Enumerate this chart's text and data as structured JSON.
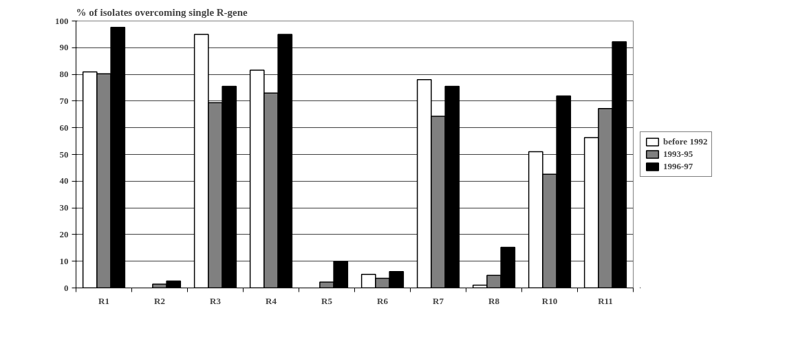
{
  "chart_data": {
    "type": "bar",
    "title": "% of isolates overcoming single R-gene",
    "categories": [
      "R1",
      "R2",
      "R3",
      "R4",
      "R5",
      "R6",
      "R7",
      "R8",
      "R10",
      "R11"
    ],
    "series": [
      {
        "name": "before 1992",
        "color": "#ffffff",
        "values": [
          80.9,
          null,
          95,
          81.6,
          null,
          5.1,
          78,
          1.0,
          51,
          56.3
        ]
      },
      {
        "name": "1993-95",
        "color": "#808080",
        "values": [
          80.2,
          1.4,
          69.4,
          73,
          2.2,
          3.6,
          64.3,
          4.7,
          42.6,
          67.2
        ]
      },
      {
        "name": "1996-97",
        "color": "#000000",
        "values": [
          97.6,
          2.6,
          75.5,
          95,
          9.9,
          6.1,
          75.5,
          15.2,
          71.9,
          92.2
        ]
      }
    ],
    "ylim": [
      0,
      100
    ],
    "yticks": [
      0,
      10,
      20,
      30,
      40,
      50,
      60,
      70,
      80,
      90,
      100
    ],
    "grid": "y",
    "legend": "right"
  }
}
